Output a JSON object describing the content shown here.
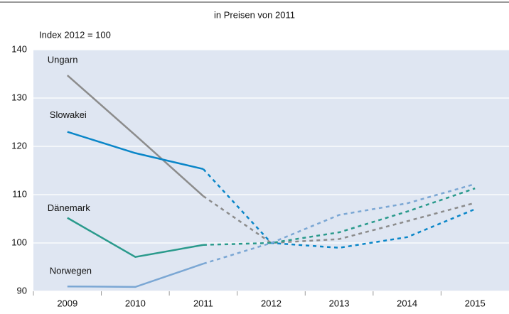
{
  "chart_data": {
    "type": "line",
    "title": "in Preisen von 2011",
    "y_label": "Index 2012 = 100",
    "categories": [
      "2009",
      "2010",
      "2011",
      "2012",
      "2013",
      "2014",
      "2015"
    ],
    "projection_start": "2011",
    "series": [
      {
        "name": "Ungarn",
        "color": "#8c8c8c",
        "values": [
          134.7,
          122.3,
          109.7,
          100,
          100.8,
          104.5,
          108.3
        ]
      },
      {
        "name": "Slowakei",
        "color": "#0a86c8",
        "values": [
          123,
          118.6,
          115.3,
          100,
          99,
          101.2,
          107
        ]
      },
      {
        "name": "Dänemark",
        "color": "#2a9a8c",
        "values": [
          105.2,
          97.1,
          99.6,
          100,
          102.2,
          106.5,
          111.3
        ]
      },
      {
        "name": "Norwegen",
        "color": "#7ba7d4",
        "values": [
          91,
          90.9,
          95.7,
          100,
          105.8,
          108.2,
          112.2
        ]
      }
    ],
    "ylim": [
      90,
      140
    ],
    "yticks": [
      90,
      100,
      110,
      120,
      130,
      140
    ],
    "grid": true
  }
}
